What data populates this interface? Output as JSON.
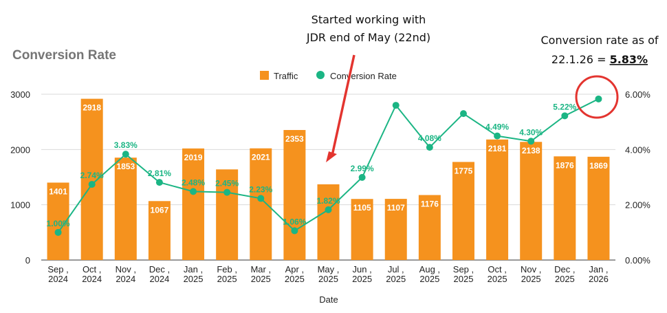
{
  "chart_data": {
    "type": "bar",
    "title": "Conversion Rate",
    "xlabel": "Date",
    "categories": [
      [
        "Sep",
        "2024"
      ],
      [
        "Oct",
        "2024"
      ],
      [
        "Nov",
        "2024"
      ],
      [
        "Dec",
        "2024"
      ],
      [
        "Jan",
        "2025"
      ],
      [
        "Feb",
        "2025"
      ],
      [
        "Mar",
        "2025"
      ],
      [
        "Apr",
        "2025"
      ],
      [
        "May",
        "2025"
      ],
      [
        "Jun",
        "2025"
      ],
      [
        "Jul",
        "2025"
      ],
      [
        "Aug",
        "2025"
      ],
      [
        "Sep",
        "2025"
      ],
      [
        "Oct",
        "2025"
      ],
      [
        "Nov",
        "2025"
      ],
      [
        "Dec",
        "2025"
      ],
      [
        "Jan",
        "2026"
      ]
    ],
    "series": [
      {
        "name": "Traffic",
        "axis": "left",
        "color": "#f5921e",
        "values": [
          1401,
          2918,
          1853,
          1067,
          2019,
          1640,
          2021,
          2353,
          1370,
          1105,
          1107,
          1176,
          1775,
          2181,
          2138,
          1876,
          1869
        ],
        "labels": [
          "1401",
          "2918",
          "1853",
          "1067",
          "2019",
          "",
          "2021",
          "2353",
          "",
          "1105",
          "1107",
          "1176",
          "1775",
          "2181",
          "2138",
          "1876",
          "1869"
        ]
      },
      {
        "name": "Conversion Rate",
        "axis": "right",
        "color": "#1bb584",
        "values": [
          1.0,
          2.74,
          3.83,
          2.81,
          2.48,
          2.45,
          2.23,
          1.06,
          1.82,
          2.99,
          5.6,
          4.08,
          5.3,
          4.49,
          4.3,
          5.22,
          5.83
        ],
        "labels": [
          "1.00%",
          "2.74%",
          "3.83%",
          "2.81%",
          "2.48%",
          "2.45%",
          "2.23%",
          "1.06%",
          "1.82%",
          "2.99%",
          "",
          "4.08%",
          "",
          "4.49%",
          "4.30%",
          "5.22%",
          ""
        ]
      }
    ],
    "ylim_left": [
      0,
      3000
    ],
    "yticks_left": [
      "0",
      "1000",
      "2000",
      "3000"
    ],
    "ylim_right": [
      0,
      6
    ],
    "yticks_right": [
      "0.00%",
      "2.00%",
      "4.00%",
      "6.00%"
    ],
    "grid": true,
    "legend": "top-center",
    "annotations": {
      "started_line1": "Started working with",
      "started_line2": "JDR end of May (22nd)",
      "rate_line1": "Conversion rate as of",
      "rate_line2_prefix": "22.1.26 = ",
      "rate_line2_value": "5.83%"
    }
  }
}
